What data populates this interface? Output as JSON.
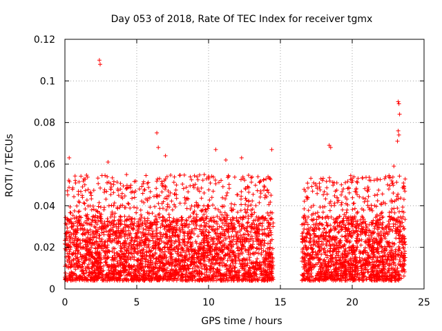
{
  "chart_data": {
    "type": "scatter",
    "title": "Day 053 of 2018, Rate Of TEC Index for receiver tgmx",
    "xlabel": "GPS time / hours",
    "ylabel": "ROTI / TECUs",
    "xlim": [
      0,
      25
    ],
    "ylim": [
      0,
      0.12
    ],
    "xticks": [
      0,
      5,
      10,
      15,
      20,
      25
    ],
    "xtick_labels": [
      "0",
      "5",
      "10",
      "15",
      "20",
      "25"
    ],
    "yticks": [
      0,
      0.02,
      0.04,
      0.06,
      0.08,
      0.1,
      0.12
    ],
    "ytick_labels": [
      "0",
      "0.02",
      "0.04",
      "0.06",
      "0.08",
      "0.1",
      "0.12"
    ],
    "grid": true,
    "marker": "+",
    "color": "#ff0000",
    "coverage": [
      [
        0,
        14.5
      ],
      [
        16.5,
        23.7
      ]
    ],
    "bulk_range": [
      0.004,
      0.035
    ],
    "notable_points": [
      {
        "x": 2.4,
        "y": 0.11
      },
      {
        "x": 2.45,
        "y": 0.108
      },
      {
        "x": 6.4,
        "y": 0.075
      },
      {
        "x": 6.5,
        "y": 0.068
      },
      {
        "x": 3.0,
        "y": 0.061
      },
      {
        "x": 0.3,
        "y": 0.063
      },
      {
        "x": 14.4,
        "y": 0.067
      },
      {
        "x": 18.4,
        "y": 0.069
      },
      {
        "x": 18.5,
        "y": 0.068
      },
      {
        "x": 23.2,
        "y": 0.09
      },
      {
        "x": 23.25,
        "y": 0.089
      },
      {
        "x": 23.3,
        "y": 0.084
      },
      {
        "x": 23.2,
        "y": 0.076
      },
      {
        "x": 23.25,
        "y": 0.074
      },
      {
        "x": 23.15,
        "y": 0.071
      },
      {
        "x": 22.9,
        "y": 0.059
      },
      {
        "x": 11.2,
        "y": 0.062
      },
      {
        "x": 12.3,
        "y": 0.063
      },
      {
        "x": 7.0,
        "y": 0.064
      },
      {
        "x": 10.5,
        "y": 0.067
      }
    ]
  }
}
